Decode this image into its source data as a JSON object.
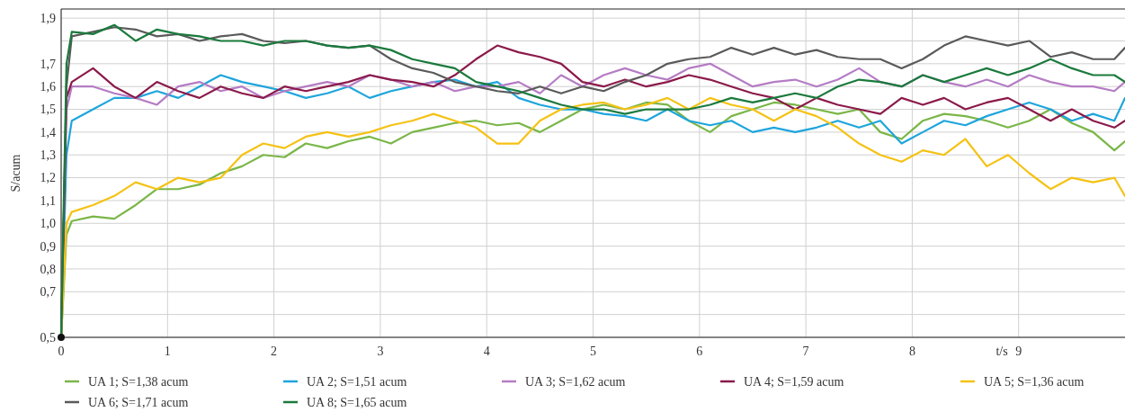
{
  "chart_data": {
    "type": "line",
    "xlabel": "t/s",
    "ylabel": "S/acum",
    "x": [
      0,
      0.05,
      0.1,
      0.3,
      0.5,
      0.7,
      0.9,
      1.1,
      1.3,
      1.5,
      1.7,
      1.9,
      2.1,
      2.3,
      2.5,
      2.7,
      2.9,
      3.1,
      3.3,
      3.5,
      3.7,
      3.9,
      4.1,
      4.3,
      4.5,
      4.7,
      4.9,
      5.1,
      5.3,
      5.5,
      5.7,
      5.9,
      6.1,
      6.3,
      6.5,
      6.7,
      6.9,
      7.1,
      7.3,
      7.5,
      7.7,
      7.9,
      8.1,
      8.3,
      8.5,
      8.7,
      8.9,
      9.1,
      9.3,
      9.5,
      9.7,
      9.9,
      10
    ],
    "xlim": [
      0,
      10
    ],
    "xticks": [
      0,
      1,
      2,
      3,
      4,
      5,
      6,
      7,
      8,
      9
    ],
    "ylim": [
      0.5,
      1.94
    ],
    "yticks": [
      {
        "value": 0.5,
        "label": "0,5"
      },
      {
        "value": 0.6,
        "label": null
      },
      {
        "value": 0.7,
        "label": "0,7"
      },
      {
        "value": 0.8,
        "label": "0,8"
      },
      {
        "value": 0.9,
        "label": "0,9"
      },
      {
        "value": 1.0,
        "label": "1,0"
      },
      {
        "value": 1.1,
        "label": "1,1"
      },
      {
        "value": 1.2,
        "label": "1,2"
      },
      {
        "value": 1.3,
        "label": "1,3"
      },
      {
        "value": 1.4,
        "label": "1,4"
      },
      {
        "value": 1.5,
        "label": "1,5"
      },
      {
        "value": 1.6,
        "label": "1,6"
      },
      {
        "value": 1.7,
        "label": "1,7"
      },
      {
        "value": 1.8,
        "label": null
      },
      {
        "value": 1.9,
        "label": "1,9"
      }
    ],
    "grid": true,
    "legend": "bottom",
    "marker": "none",
    "line_style": "solid",
    "series": [
      {
        "name": "UA 1; S=1,38 acum",
        "color": "#7ab648",
        "values": [
          0.5,
          0.95,
          1.01,
          1.03,
          1.02,
          1.08,
          1.15,
          1.15,
          1.17,
          1.22,
          1.25,
          1.3,
          1.29,
          1.35,
          1.33,
          1.36,
          1.38,
          1.35,
          1.4,
          1.42,
          1.44,
          1.45,
          1.43,
          1.44,
          1.4,
          1.45,
          1.5,
          1.52,
          1.5,
          1.53,
          1.52,
          1.45,
          1.4,
          1.47,
          1.5,
          1.53,
          1.52,
          1.5,
          1.48,
          1.5,
          1.4,
          1.37,
          1.45,
          1.48,
          1.47,
          1.45,
          1.42,
          1.45,
          1.5,
          1.44,
          1.4,
          1.32,
          1.36
        ]
      },
      {
        "name": "UA 2; S=1,51 acum",
        "color": "#1ea5dc",
        "values": [
          0.5,
          1.3,
          1.45,
          1.5,
          1.55,
          1.55,
          1.58,
          1.55,
          1.6,
          1.65,
          1.62,
          1.6,
          1.58,
          1.55,
          1.57,
          1.6,
          1.55,
          1.58,
          1.6,
          1.62,
          1.63,
          1.6,
          1.62,
          1.55,
          1.52,
          1.5,
          1.5,
          1.48,
          1.47,
          1.45,
          1.5,
          1.45,
          1.43,
          1.45,
          1.4,
          1.42,
          1.4,
          1.42,
          1.45,
          1.42,
          1.45,
          1.35,
          1.4,
          1.45,
          1.43,
          1.47,
          1.5,
          1.53,
          1.5,
          1.45,
          1.48,
          1.45,
          1.55
        ]
      },
      {
        "name": "UA 3; S=1,62 acum",
        "color": "#b57cc4",
        "values": [
          0.5,
          1.5,
          1.6,
          1.6,
          1.57,
          1.55,
          1.52,
          1.6,
          1.62,
          1.58,
          1.6,
          1.55,
          1.58,
          1.6,
          1.62,
          1.6,
          1.65,
          1.63,
          1.6,
          1.62,
          1.58,
          1.6,
          1.6,
          1.62,
          1.57,
          1.65,
          1.6,
          1.65,
          1.68,
          1.65,
          1.63,
          1.68,
          1.7,
          1.65,
          1.6,
          1.62,
          1.63,
          1.6,
          1.63,
          1.68,
          1.62,
          1.6,
          1.65,
          1.62,
          1.6,
          1.63,
          1.6,
          1.65,
          1.62,
          1.6,
          1.6,
          1.58,
          1.62
        ]
      },
      {
        "name": "UA 4; S=1,59 acum",
        "color": "#8b1a4a",
        "values": [
          0.5,
          1.55,
          1.62,
          1.68,
          1.6,
          1.55,
          1.62,
          1.58,
          1.55,
          1.6,
          1.57,
          1.55,
          1.6,
          1.58,
          1.6,
          1.62,
          1.65,
          1.63,
          1.62,
          1.6,
          1.65,
          1.72,
          1.78,
          1.75,
          1.73,
          1.7,
          1.62,
          1.6,
          1.63,
          1.6,
          1.62,
          1.65,
          1.63,
          1.6,
          1.57,
          1.55,
          1.5,
          1.55,
          1.52,
          1.5,
          1.48,
          1.55,
          1.52,
          1.55,
          1.5,
          1.53,
          1.55,
          1.5,
          1.45,
          1.5,
          1.45,
          1.42,
          1.45
        ]
      },
      {
        "name": "UA 5; S=1,36 acum",
        "color": "#f5c214",
        "values": [
          0.5,
          1.0,
          1.05,
          1.08,
          1.12,
          1.18,
          1.15,
          1.2,
          1.18,
          1.2,
          1.3,
          1.35,
          1.33,
          1.38,
          1.4,
          1.38,
          1.4,
          1.43,
          1.45,
          1.48,
          1.45,
          1.42,
          1.35,
          1.35,
          1.45,
          1.5,
          1.52,
          1.53,
          1.5,
          1.52,
          1.55,
          1.5,
          1.55,
          1.52,
          1.5,
          1.45,
          1.5,
          1.47,
          1.42,
          1.35,
          1.3,
          1.27,
          1.32,
          1.3,
          1.37,
          1.25,
          1.3,
          1.22,
          1.15,
          1.2,
          1.18,
          1.2,
          1.12
        ]
      },
      {
        "name": "UA 6; S=1,71 acum",
        "color": "#5a5a5a",
        "values": [
          0.5,
          1.6,
          1.82,
          1.84,
          1.86,
          1.85,
          1.82,
          1.83,
          1.8,
          1.82,
          1.83,
          1.8,
          1.79,
          1.8,
          1.78,
          1.77,
          1.78,
          1.72,
          1.68,
          1.66,
          1.62,
          1.6,
          1.58,
          1.57,
          1.6,
          1.57,
          1.6,
          1.58,
          1.62,
          1.65,
          1.7,
          1.72,
          1.73,
          1.77,
          1.74,
          1.77,
          1.74,
          1.76,
          1.73,
          1.72,
          1.72,
          1.68,
          1.72,
          1.78,
          1.82,
          1.8,
          1.78,
          1.8,
          1.73,
          1.75,
          1.72,
          1.72,
          1.77
        ]
      },
      {
        "name": "UA 8; S=1,65 acum",
        "color": "#1a7a3c",
        "values": [
          0.5,
          1.7,
          1.84,
          1.83,
          1.87,
          1.8,
          1.85,
          1.83,
          1.82,
          1.8,
          1.8,
          1.78,
          1.8,
          1.8,
          1.78,
          1.77,
          1.78,
          1.76,
          1.72,
          1.7,
          1.68,
          1.62,
          1.6,
          1.58,
          1.55,
          1.52,
          1.5,
          1.5,
          1.48,
          1.5,
          1.5,
          1.5,
          1.52,
          1.55,
          1.53,
          1.55,
          1.57,
          1.55,
          1.6,
          1.63,
          1.62,
          1.6,
          1.65,
          1.62,
          1.65,
          1.68,
          1.65,
          1.68,
          1.72,
          1.68,
          1.65,
          1.65,
          1.62
        ]
      }
    ]
  }
}
